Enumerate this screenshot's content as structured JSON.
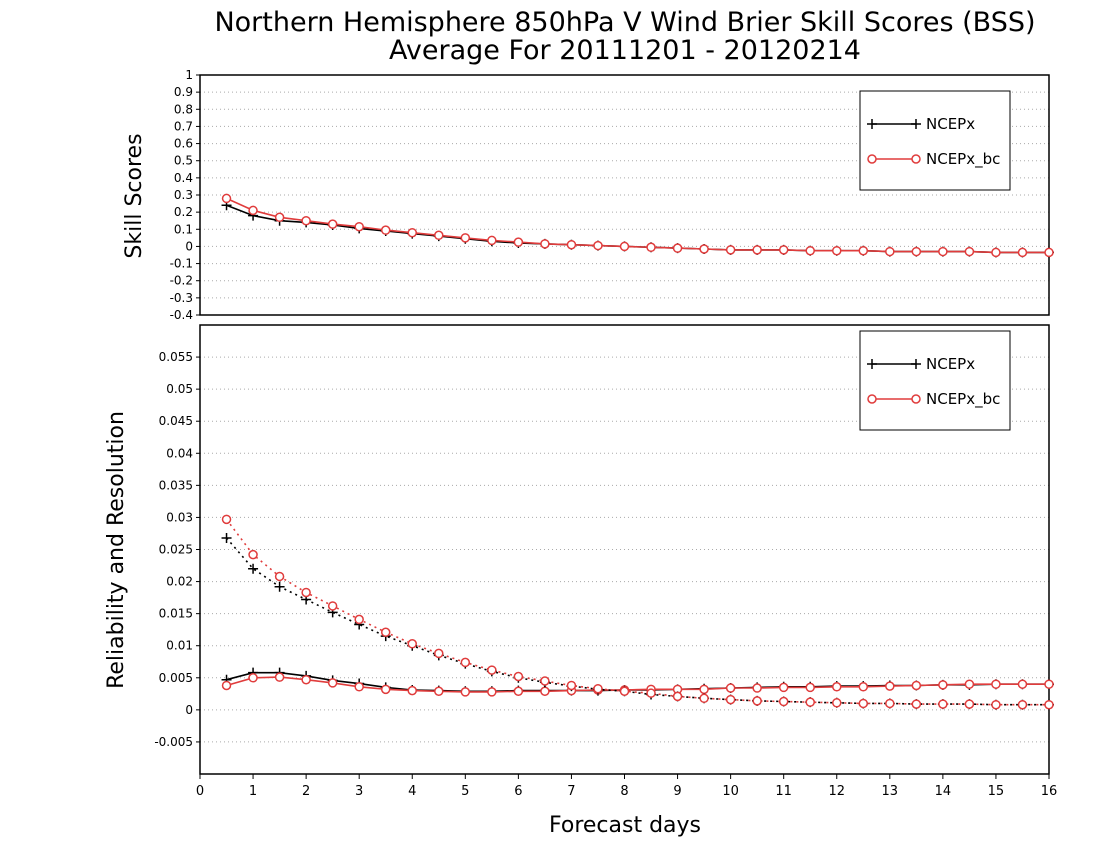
{
  "title_line1": "Northern Hemisphere 850hPa V Wind Brier Skill Scores (BSS)",
  "title_line2": "Average For 20111201 - 20120214",
  "colors": {
    "ncep": "#000000",
    "ncep_bc": "#e03c3c",
    "grid": "#aaaaaa"
  },
  "chart_data": [
    {
      "type": "line",
      "ylabel": "Skill Scores",
      "xlabel": "",
      "ylim": [
        -0.4,
        1
      ],
      "xlim": [
        0,
        16
      ],
      "yticks": [
        "-0.4",
        "-0.3",
        "-0.2",
        "-0.1",
        "0",
        "0.1",
        "0.2",
        "0.3",
        "0.4",
        "0.5",
        "0.6",
        "0.7",
        "0.8",
        "0.9",
        "1"
      ],
      "xticks": [],
      "grid": true,
      "legend_position": "top-right",
      "legend": [
        "NCEPx",
        "NCEPx_bc"
      ],
      "x": [
        0.5,
        1,
        1.5,
        2,
        2.5,
        3,
        3.5,
        4,
        4.5,
        5,
        5.5,
        6,
        6.5,
        7,
        7.5,
        8,
        8.5,
        9,
        9.5,
        10,
        10.5,
        11,
        11.5,
        12,
        12.5,
        13,
        13.5,
        14,
        14.5,
        15,
        15.5,
        16
      ],
      "series": [
        {
          "name": "NCEPx",
          "style": "solid",
          "marker": "plus",
          "color": "#000000",
          "values": [
            0.24,
            0.18,
            0.15,
            0.14,
            0.125,
            0.105,
            0.09,
            0.075,
            0.06,
            0.045,
            0.03,
            0.02,
            0.015,
            0.01,
            0.005,
            0.0,
            -0.005,
            -0.01,
            -0.015,
            -0.02,
            -0.02,
            -0.02,
            -0.025,
            -0.025,
            -0.025,
            -0.03,
            -0.03,
            -0.03,
            -0.03,
            -0.035,
            -0.035,
            -0.035
          ]
        },
        {
          "name": "NCEPx_bc",
          "style": "solid",
          "marker": "circle",
          "color": "#e03c3c",
          "values": [
            0.28,
            0.21,
            0.17,
            0.15,
            0.13,
            0.115,
            0.095,
            0.08,
            0.065,
            0.05,
            0.035,
            0.025,
            0.015,
            0.01,
            0.005,
            0.0,
            -0.005,
            -0.01,
            -0.015,
            -0.02,
            -0.02,
            -0.02,
            -0.025,
            -0.025,
            -0.025,
            -0.03,
            -0.03,
            -0.03,
            -0.03,
            -0.035,
            -0.035,
            -0.035
          ]
        }
      ]
    },
    {
      "type": "line",
      "ylabel": "Reliability and Resolution",
      "xlabel": "Forecast days",
      "ylim": [
        -0.01,
        0.06
      ],
      "xlim": [
        0,
        16
      ],
      "yticks": [
        "-0.005",
        "0",
        "0.005",
        "0.01",
        "0.015",
        "0.02",
        "0.025",
        "0.03",
        "0.035",
        "0.04",
        "0.045",
        "0.05",
        "0.055"
      ],
      "xticks": [
        "0",
        "1",
        "2",
        "3",
        "4",
        "5",
        "6",
        "7",
        "8",
        "9",
        "10",
        "11",
        "12",
        "13",
        "14",
        "15",
        "16"
      ],
      "grid": true,
      "legend_position": "top-right",
      "legend": [
        "NCEPx",
        "NCEPx_bc"
      ],
      "x": [
        0.5,
        1,
        1.5,
        2,
        2.5,
        3,
        3.5,
        4,
        4.5,
        5,
        5.5,
        6,
        6.5,
        7,
        7.5,
        8,
        8.5,
        9,
        9.5,
        10,
        10.5,
        11,
        11.5,
        12,
        12.5,
        13,
        13.5,
        14,
        14.5,
        15,
        15.5,
        16
      ],
      "series": [
        {
          "name": "NCEPx reliability",
          "style": "solid",
          "marker": "plus",
          "color": "#000000",
          "values": [
            0.0047,
            0.0058,
            0.0058,
            0.0053,
            0.0046,
            0.0041,
            0.0035,
            0.0031,
            0.003,
            0.0029,
            0.0029,
            0.003,
            0.003,
            0.003,
            0.003,
            0.0031,
            0.0031,
            0.0032,
            0.0033,
            0.0034,
            0.0035,
            0.0036,
            0.0036,
            0.0037,
            0.0037,
            0.0038,
            0.0038,
            0.0039,
            0.0039,
            0.004,
            0.004,
            0.004
          ]
        },
        {
          "name": "NCEPx_bc reliability",
          "style": "solid",
          "marker": "circle",
          "color": "#e03c3c",
          "values": [
            0.0038,
            0.005,
            0.0051,
            0.0047,
            0.0042,
            0.0036,
            0.0032,
            0.003,
            0.0029,
            0.0028,
            0.0028,
            0.0029,
            0.0029,
            0.003,
            0.0031,
            0.0031,
            0.0032,
            0.0032,
            0.0032,
            0.0034,
            0.0034,
            0.0035,
            0.0035,
            0.0036,
            0.0036,
            0.0037,
            0.0038,
            0.0039,
            0.004,
            0.004,
            0.004,
            0.004
          ]
        },
        {
          "name": "NCEPx resolution",
          "style": "dotted",
          "marker": "plus",
          "color": "#000000",
          "values": [
            0.0268,
            0.022,
            0.0192,
            0.0172,
            0.0152,
            0.0133,
            0.0115,
            0.01,
            0.0085,
            0.0072,
            0.006,
            0.005,
            0.0043,
            0.0037,
            0.0032,
            0.0029,
            0.0024,
            0.0021,
            0.0018,
            0.0016,
            0.0014,
            0.0013,
            0.0012,
            0.0011,
            0.001,
            0.001,
            0.0009,
            0.0009,
            0.0009,
            0.0008,
            0.0008,
            0.0008
          ]
        },
        {
          "name": "NCEPx_bc resolution",
          "style": "dotted",
          "marker": "circle",
          "color": "#e03c3c",
          "values": [
            0.0297,
            0.0242,
            0.0208,
            0.0183,
            0.0162,
            0.0141,
            0.0121,
            0.0103,
            0.0088,
            0.0074,
            0.0062,
            0.0052,
            0.0045,
            0.0038,
            0.0033,
            0.0029,
            0.0026,
            0.0021,
            0.0018,
            0.0016,
            0.0014,
            0.0013,
            0.0012,
            0.0011,
            0.001,
            0.001,
            0.0009,
            0.0009,
            0.0009,
            0.0008,
            0.0008,
            0.0008
          ]
        }
      ]
    }
  ]
}
